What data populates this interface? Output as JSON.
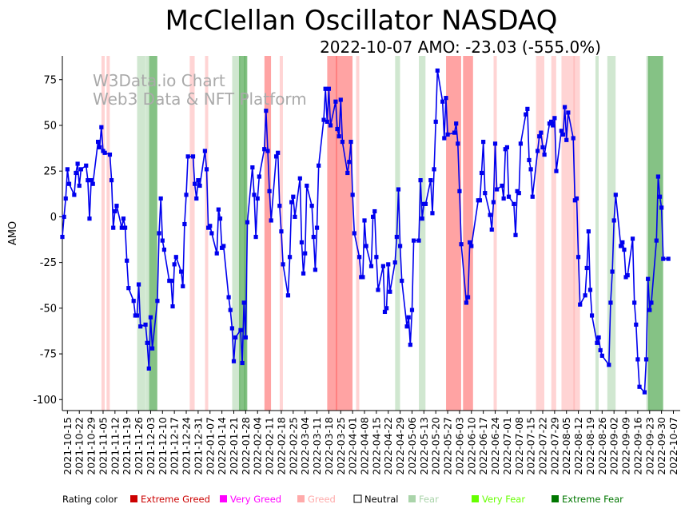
{
  "chart_data": {
    "type": "line",
    "title": "McClellan Oscillator NASDAQ",
    "subtitle": "2022-10-07 AMO: -23.03 (-555.0%)",
    "watermark": [
      "W3Data.io Chart",
      "Web3 Data & NFT Platform"
    ],
    "ylabel": "AMO",
    "xlabel": "",
    "ylim": [
      -106,
      88
    ],
    "yticks": [
      -100,
      -75,
      -50,
      -25,
      0,
      25,
      50,
      75
    ],
    "x_start": "2021-10-12",
    "x_end": "2022-10-11",
    "xticks": [
      "2021-10-15",
      "2021-10-22",
      "2021-10-29",
      "2021-11-05",
      "2021-11-12",
      "2021-11-19",
      "2021-11-26",
      "2021-12-03",
      "2021-12-10",
      "2021-12-17",
      "2021-12-24",
      "2021-12-31",
      "2022-01-07",
      "2022-01-14",
      "2022-01-21",
      "2022-01-28",
      "2022-02-04",
      "2022-02-11",
      "2022-02-18",
      "2022-02-25",
      "2022-03-04",
      "2022-03-11",
      "2022-03-18",
      "2022-03-25",
      "2022-04-01",
      "2022-04-08",
      "2022-04-15",
      "2022-04-22",
      "2022-04-29",
      "2022-05-06",
      "2022-05-13",
      "2022-05-20",
      "2022-05-27",
      "2022-06-03",
      "2022-06-10",
      "2022-06-17",
      "2022-06-24",
      "2022-07-01",
      "2022-07-08",
      "2022-07-15",
      "2022-07-22",
      "2022-07-29",
      "2022-08-05",
      "2022-08-12",
      "2022-08-19",
      "2022-08-26",
      "2022-09-02",
      "2022-09-09",
      "2022-09-16",
      "2022-09-23",
      "2022-09-30",
      "2022-10-07"
    ],
    "series": [
      {
        "name": "AMO",
        "color": "#0000ee",
        "start_date": "2021-10-12",
        "dates_step_days": 1,
        "values": [
          -11,
          0,
          10,
          26,
          18,
          null,
          null,
          12,
          24,
          29,
          17,
          26,
          null,
          null,
          28,
          20,
          -1,
          20,
          18,
          null,
          null,
          41,
          38,
          49,
          36,
          35,
          null,
          null,
          34,
          20,
          -6,
          3,
          6,
          null,
          null,
          -6,
          -1,
          -6,
          -24,
          -39,
          null,
          null,
          -46,
          -54,
          -54,
          -37,
          -60,
          null,
          null,
          -59,
          -69,
          -83,
          -55,
          -72,
          null,
          null,
          -46,
          -9,
          10,
          -13,
          -18,
          null,
          null,
          -35,
          -35,
          -49,
          -26,
          -22,
          null,
          null,
          -30,
          -38,
          -4,
          12,
          33,
          null,
          null,
          33,
          18,
          10,
          20,
          17,
          null,
          null,
          36,
          26,
          -6,
          -5,
          -9,
          null,
          null,
          -20,
          4,
          -1,
          -17,
          -16,
          null,
          null,
          -44,
          -51,
          -61,
          -79,
          -66,
          null,
          null,
          -62,
          -80,
          -47,
          -66,
          -3,
          null,
          null,
          27,
          12,
          -11,
          10,
          22,
          null,
          null,
          37,
          58,
          36,
          14,
          -2,
          null,
          null,
          33,
          35,
          6,
          -8,
          -26,
          null,
          null,
          -43,
          -22,
          8,
          11,
          0,
          null,
          null,
          21,
          -14,
          -31,
          -20,
          17,
          null,
          null,
          6,
          -11,
          -29,
          -6,
          28,
          null,
          null,
          53,
          70,
          52,
          70,
          50,
          null,
          null,
          63,
          48,
          44,
          64,
          41,
          null,
          null,
          24,
          30,
          41,
          12,
          -9,
          null,
          null,
          -22,
          -33,
          -33,
          -2,
          -16,
          null,
          null,
          -27,
          0,
          3,
          -22,
          -40,
          null,
          null,
          -27,
          -52,
          -50,
          -26,
          -41,
          null,
          null,
          -25,
          -11,
          15,
          -16,
          -35,
          null,
          null,
          -60,
          -55,
          -70,
          -51,
          -13,
          null,
          null,
          -13,
          20,
          -1,
          7,
          7,
          null,
          null,
          20,
          2,
          26,
          52,
          80,
          null,
          null,
          63,
          43,
          65,
          45,
          null,
          null,
          null,
          46,
          51,
          40,
          14,
          -15,
          null,
          null,
          -47,
          -44,
          -14,
          -16,
          null,
          null,
          null,
          9,
          9,
          24,
          41,
          13,
          null,
          null,
          1,
          -7,
          8,
          40,
          15,
          null,
          null,
          17,
          10,
          37,
          38,
          11,
          null,
          null,
          7,
          -10,
          14,
          13,
          40,
          null,
          null,
          56,
          59,
          31,
          26,
          11,
          null,
          null,
          36,
          44,
          46,
          38,
          34,
          null,
          null,
          51,
          52,
          50,
          54,
          25,
          null,
          null,
          47,
          45,
          60,
          42,
          57,
          null,
          null,
          43,
          9,
          10,
          -22,
          -48,
          null,
          null,
          -43,
          -28,
          -8,
          -40,
          -54,
          null,
          null,
          -69,
          -66,
          -73,
          -76,
          null,
          null,
          null,
          -81,
          -47,
          -30,
          -2,
          12,
          null,
          null,
          -16,
          -14,
          -18,
          -33,
          -32,
          null,
          null,
          -12,
          -47,
          -59,
          -78,
          -93,
          null,
          null,
          -96,
          -78,
          -34,
          -51,
          -47,
          null,
          null,
          -13,
          22,
          11,
          5,
          -23,
          null,
          null,
          -23
        ]
      }
    ],
    "bands_legend": [
      {
        "label": "Rating color",
        "color": "#000000"
      },
      {
        "label": "Extreme Greed",
        "color": "#cc0000"
      },
      {
        "label": "Very Greed",
        "color": "#ff00ff"
      },
      {
        "label": "Greed",
        "color": "#ffaaaa"
      },
      {
        "label": "Neutral",
        "color": "#000000"
      },
      {
        "label": "Fear",
        "color": "#aad4aa"
      },
      {
        "label": "Very Fear",
        "color": "#66ff00"
      },
      {
        "label": "Extreme Fear",
        "color": "#007700"
      }
    ],
    "bands": [
      {
        "start": "2021-11-05",
        "end": "2021-11-05",
        "level": "greed"
      },
      {
        "start": "2021-11-08",
        "end": "2021-11-08",
        "level": "greed"
      },
      {
        "start": "2021-11-26",
        "end": "2021-11-29",
        "level": "fear"
      },
      {
        "start": "2021-12-01",
        "end": "2021-12-01",
        "level": "fear"
      },
      {
        "start": "2021-12-03",
        "end": "2021-12-06",
        "level": "fear_strong"
      },
      {
        "start": "2021-12-27",
        "end": "2021-12-28",
        "level": "greed"
      },
      {
        "start": "2022-01-05",
        "end": "2022-01-05",
        "level": "greed"
      },
      {
        "start": "2022-01-21",
        "end": "2022-01-24",
        "level": "fear"
      },
      {
        "start": "2022-01-25",
        "end": "2022-01-27",
        "level": "fear_strong"
      },
      {
        "start": "2022-01-28",
        "end": "2022-01-28",
        "level": "fear_strong"
      },
      {
        "start": "2022-02-09",
        "end": "2022-02-11",
        "level": "greed_strong"
      },
      {
        "start": "2022-02-18",
        "end": "2022-02-18",
        "level": "greed"
      },
      {
        "start": "2022-03-18",
        "end": "2022-03-22",
        "level": "greed_strong"
      },
      {
        "start": "2022-03-23",
        "end": "2022-03-31",
        "level": "greed_strong"
      },
      {
        "start": "2022-04-04",
        "end": "2022-04-04",
        "level": "greed"
      },
      {
        "start": "2022-04-27",
        "end": "2022-04-28",
        "level": "fear"
      },
      {
        "start": "2022-05-11",
        "end": "2022-05-13",
        "level": "fear"
      },
      {
        "start": "2022-05-27",
        "end": "2022-06-03",
        "level": "greed_strong"
      },
      {
        "start": "2022-06-06",
        "end": "2022-06-10",
        "level": "greed_strong"
      },
      {
        "start": "2022-06-24",
        "end": "2022-06-24",
        "level": "greed"
      },
      {
        "start": "2022-07-19",
        "end": "2022-07-22",
        "level": "greed"
      },
      {
        "start": "2022-07-28",
        "end": "2022-07-29",
        "level": "greed"
      },
      {
        "start": "2022-08-03",
        "end": "2022-08-09",
        "level": "greed"
      },
      {
        "start": "2022-08-10",
        "end": "2022-08-12",
        "level": "greed"
      },
      {
        "start": "2022-08-23",
        "end": "2022-08-23",
        "level": "fear"
      },
      {
        "start": "2022-08-30",
        "end": "2022-09-02",
        "level": "fear"
      },
      {
        "start": "2022-09-22",
        "end": "2022-09-22",
        "level": "fear"
      },
      {
        "start": "2022-09-23",
        "end": "2022-09-30",
        "level": "fear_strong"
      }
    ],
    "grid": false,
    "legend": "bottom"
  }
}
